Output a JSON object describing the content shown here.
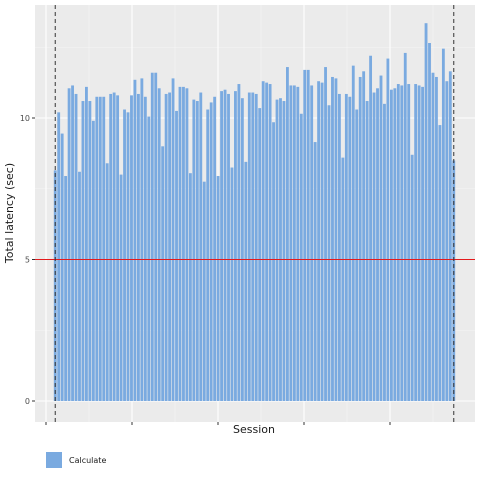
{
  "chart_data": {
    "type": "bar",
    "title": "",
    "xlabel": "Session",
    "ylabel": "Total latency (sec)",
    "ylim": [
      0,
      14
    ],
    "yticks": [
      0,
      5,
      10
    ],
    "x_tick_labels": [
      "",
      "",
      "",
      "",
      ""
    ],
    "reference_line": {
      "value": 5,
      "color": "#e41a1c"
    },
    "grid": true,
    "legend_placement": "bottom-left",
    "colors": {
      "bar": "#7aaae0",
      "panel": "#ebebeb",
      "grid": "#ffffff"
    },
    "series": [
      {
        "name": "Calculate",
        "values": [
          8.15,
          10.2,
          9.45,
          7.95,
          11.05,
          11.15,
          10.85,
          8.1,
          10.6,
          11.1,
          10.6,
          9.9,
          10.75,
          10.75,
          10.75,
          8.4,
          10.85,
          10.9,
          10.8,
          8.0,
          10.3,
          10.2,
          10.8,
          11.35,
          10.85,
          11.4,
          10.75,
          10.05,
          11.6,
          11.6,
          11.05,
          9.0,
          10.85,
          10.9,
          11.4,
          10.25,
          11.1,
          11.1,
          11.05,
          8.05,
          10.65,
          10.6,
          10.9,
          7.75,
          10.3,
          10.55,
          10.75,
          7.95,
          10.95,
          11.0,
          10.85,
          8.25,
          10.95,
          11.2,
          10.7,
          8.45,
          10.9,
          10.9,
          10.85,
          10.35,
          11.3,
          11.25,
          11.2,
          9.85,
          10.65,
          10.7,
          10.6,
          11.8,
          11.15,
          11.15,
          11.1,
          10.15,
          11.7,
          11.7,
          11.15,
          9.15,
          11.3,
          11.25,
          11.8,
          10.45,
          11.45,
          11.4,
          10.85,
          8.6,
          10.85,
          10.75,
          11.85,
          10.3,
          11.45,
          11.65,
          10.6,
          12.2,
          10.9,
          11.05,
          11.5,
          10.5,
          12.1,
          11.0,
          11.05,
          11.2,
          11.15,
          12.3,
          11.2,
          8.7,
          11.2,
          11.15,
          11.1,
          13.35,
          12.65,
          11.6,
          11.45,
          9.75,
          12.45,
          11.3,
          11.65,
          8.5
        ]
      }
    ],
    "vertical_lines": {
      "at_bars": [
        0,
        115
      ],
      "style": "dashed"
    }
  },
  "legend": {
    "label": "Calculate",
    "color": "#7aaae0"
  }
}
